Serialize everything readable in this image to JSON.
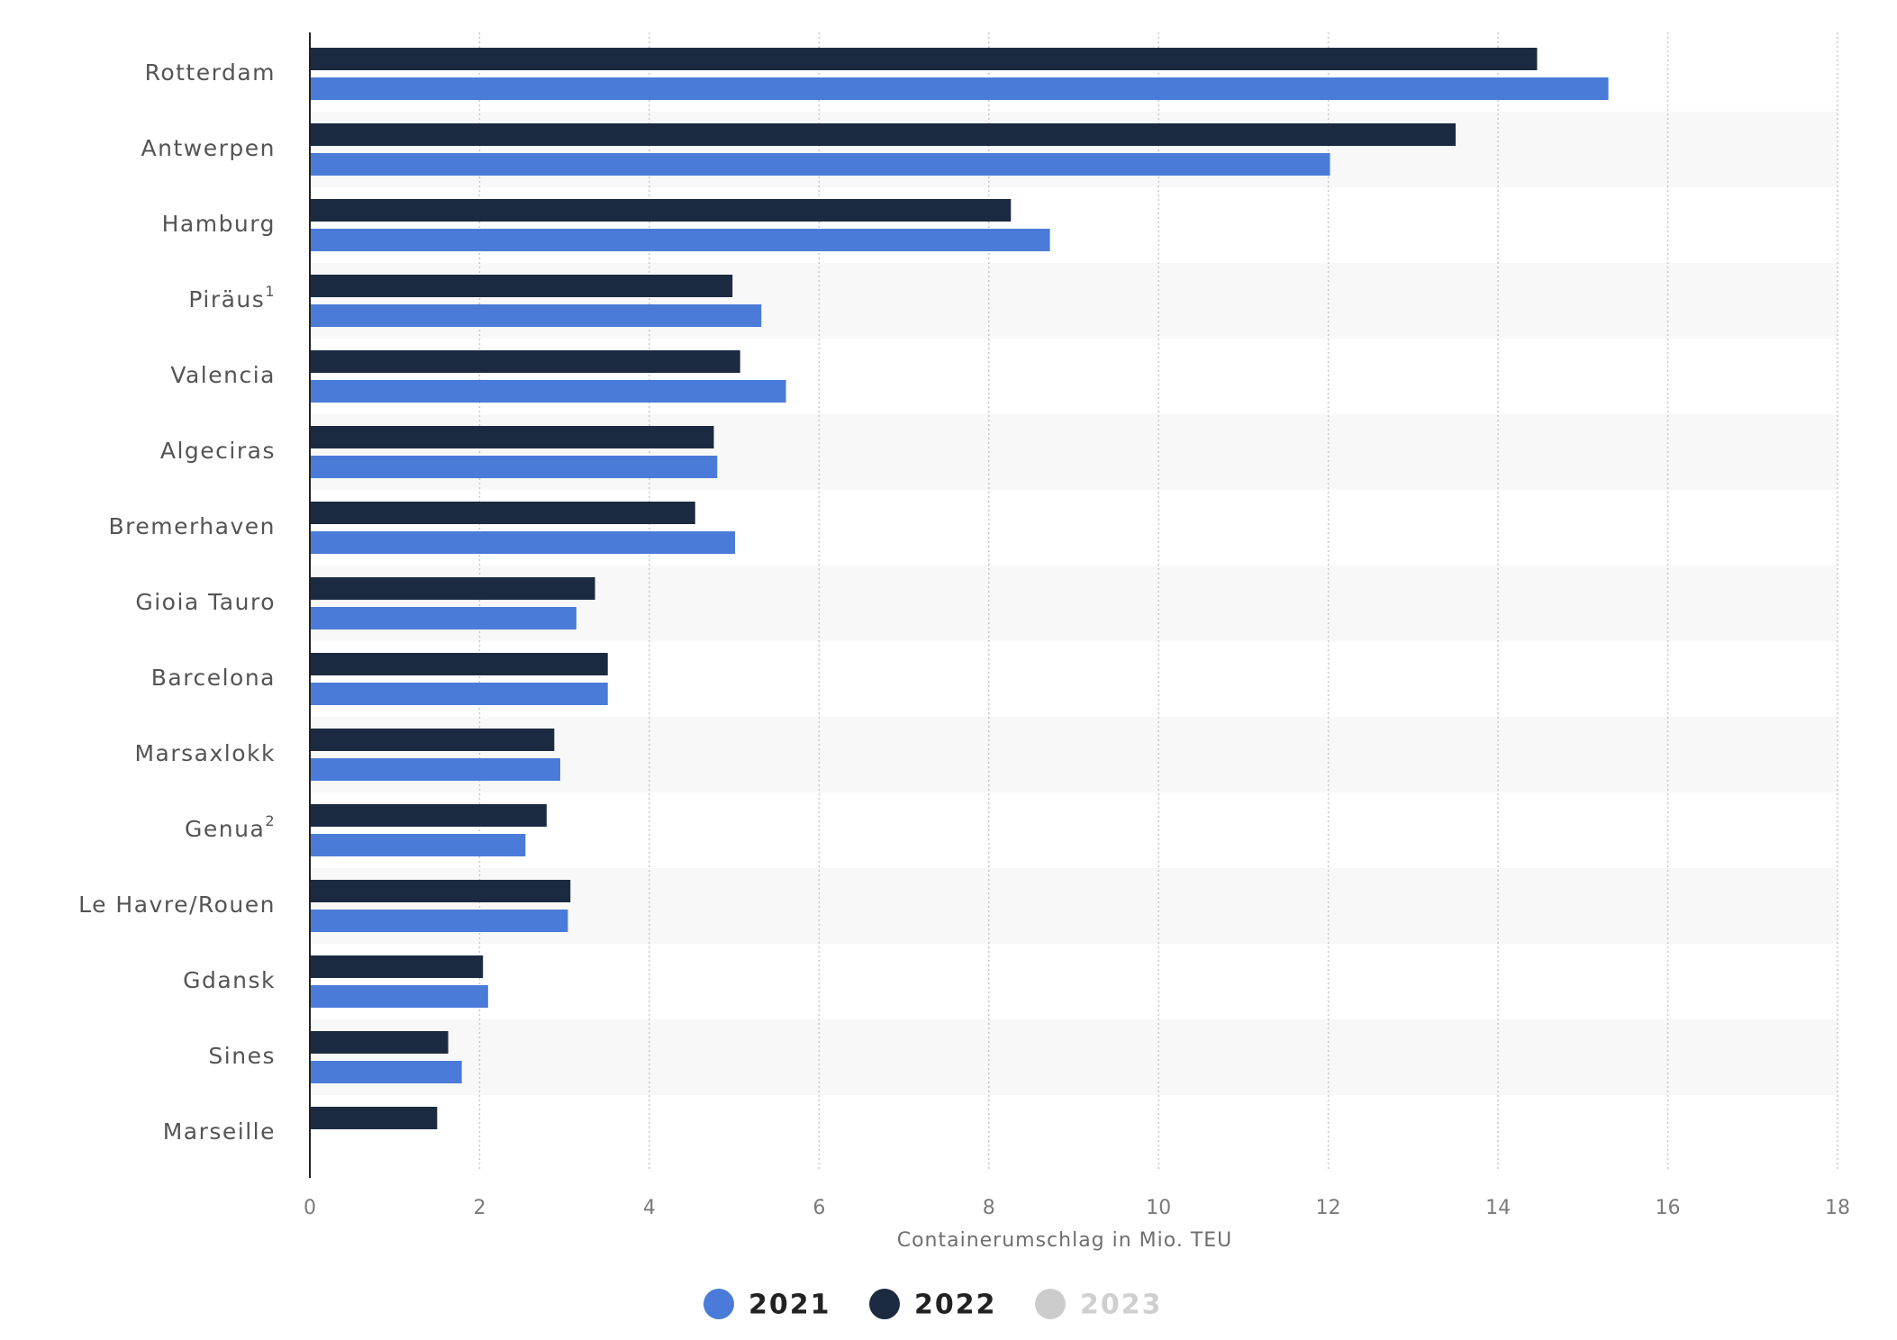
{
  "chart_data": {
    "type": "bar",
    "orientation": "horizontal",
    "categories": [
      "Rotterdam",
      "Antwerpen",
      "Hamburg",
      "Piräus",
      "Valencia",
      "Algeciras",
      "Bremerhaven",
      "Gioia Tauro",
      "Barcelona",
      "Marsaxlokk",
      "Genua",
      "Le Havre/Rouen",
      "Gdansk",
      "Sines",
      "Marseille"
    ],
    "category_footnotes": [
      "",
      "",
      "",
      "1",
      "",
      "",
      "",
      "",
      "",
      "",
      "2",
      "",
      "",
      "",
      ""
    ],
    "series": [
      {
        "name": "2022",
        "color": "#1b2a41",
        "values": [
          14.46,
          13.5,
          8.26,
          4.98,
          5.07,
          4.76,
          4.54,
          3.36,
          3.51,
          2.88,
          2.79,
          3.07,
          2.04,
          1.63,
          1.5
        ]
      },
      {
        "name": "2021",
        "color": "#4a7bd8",
        "values": [
          15.3,
          12.02,
          8.72,
          5.32,
          5.61,
          4.8,
          5.01,
          3.14,
          3.51,
          2.95,
          2.54,
          3.04,
          2.1,
          1.79,
          null
        ]
      }
    ],
    "legend": [
      {
        "label": "2021",
        "color": "#4a7bd8",
        "active": true
      },
      {
        "label": "2022",
        "color": "#1b2a41",
        "active": true
      },
      {
        "label": "2023",
        "color": "#cccccc",
        "active": false
      }
    ],
    "legend_position": "bottom-center",
    "xlabel": "Containerumschlag in Mio. TEU",
    "xlim": [
      0,
      18
    ],
    "xticks": [
      0,
      2,
      4,
      6,
      8,
      10,
      12,
      14,
      16,
      18
    ],
    "grid": true
  }
}
